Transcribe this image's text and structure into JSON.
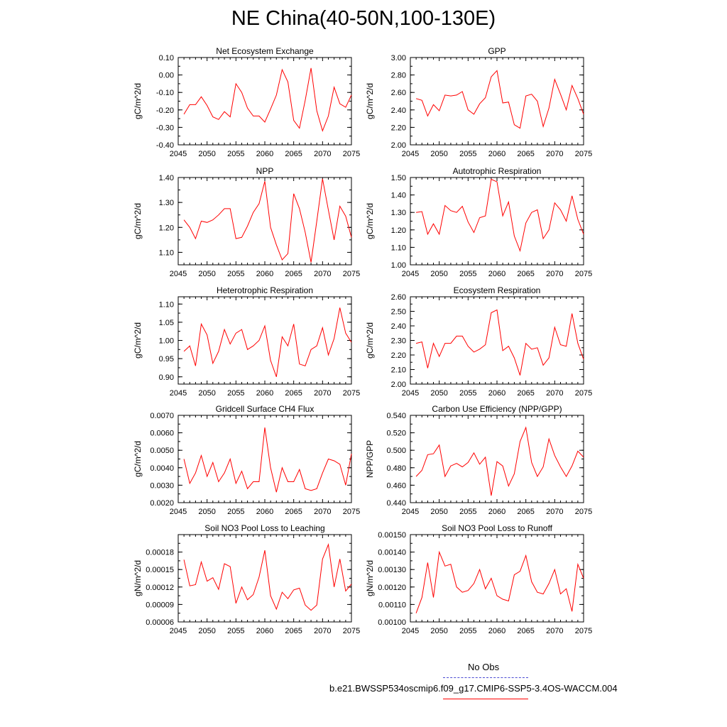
{
  "title": "NE China(40-50N,100-130E)",
  "colors": {
    "model_line": "#ff0000",
    "obs_line": "#4b4bd2",
    "axis": "#000000"
  },
  "legend": [
    {
      "label": "No Obs",
      "style": "dashed",
      "color": "#4b4bd2"
    },
    {
      "label": "b.e21.BWSSP534oscmip6.f09_g17.CMIP6-SSP5-3.4OS-WACCM.004",
      "style": "solid",
      "color": "#ff0000"
    }
  ],
  "chart_data": [
    {
      "type": "line",
      "title": "Net Ecosystem Exchange",
      "ylabel": "gC/m^2/d",
      "xlim": [
        2045,
        2075
      ],
      "xticks": [
        2045,
        2050,
        2055,
        2060,
        2065,
        2070,
        2075
      ],
      "ylim": [
        -0.4,
        0.1
      ],
      "yticks": [
        "-0.40",
        "-0.30",
        "-0.20",
        "-0.10",
        "0.00",
        "0.10"
      ],
      "x_start": 2046,
      "values": [
        -0.225,
        -0.17,
        -0.17,
        -0.125,
        -0.175,
        -0.24,
        -0.255,
        -0.21,
        -0.24,
        -0.05,
        -0.1,
        -0.19,
        -0.235,
        -0.235,
        -0.27,
        -0.195,
        -0.115,
        0.03,
        -0.04,
        -0.26,
        -0.305,
        -0.145,
        0.04,
        -0.205,
        -0.32,
        -0.235,
        -0.07,
        -0.165,
        -0.185,
        -0.115
      ]
    },
    {
      "type": "line",
      "title": "GPP",
      "ylabel": "gC/m^2/d",
      "xlim": [
        2045,
        2075
      ],
      "xticks": [
        2045,
        2050,
        2055,
        2060,
        2065,
        2070,
        2075
      ],
      "ylim": [
        2.0,
        3.0
      ],
      "yticks": [
        "2.00",
        "2.20",
        "2.40",
        "2.60",
        "2.80",
        "3.00"
      ],
      "x_start": 2046,
      "values": [
        2.53,
        2.51,
        2.33,
        2.46,
        2.39,
        2.57,
        2.56,
        2.57,
        2.61,
        2.4,
        2.35,
        2.47,
        2.54,
        2.78,
        2.85,
        2.48,
        2.49,
        2.23,
        2.19,
        2.56,
        2.58,
        2.5,
        2.21,
        2.42,
        2.75,
        2.58,
        2.4,
        2.68,
        2.53,
        2.35
      ]
    },
    {
      "type": "line",
      "title": "NPP",
      "ylabel": "gC/m^2/d",
      "xlim": [
        2045,
        2075
      ],
      "xticks": [
        2045,
        2050,
        2055,
        2060,
        2065,
        2070,
        2075
      ],
      "ylim": [
        1.05,
        1.4
      ],
      "yticks": [
        "1.10",
        "1.20",
        "1.30",
        "1.40"
      ],
      "x_start": 2046,
      "values": [
        1.23,
        1.2,
        1.155,
        1.225,
        1.22,
        1.23,
        1.25,
        1.275,
        1.275,
        1.155,
        1.16,
        1.205,
        1.26,
        1.295,
        1.385,
        1.2,
        1.13,
        1.07,
        1.095,
        1.335,
        1.275,
        1.18,
        1.06,
        1.225,
        1.395,
        1.27,
        1.15,
        1.285,
        1.245,
        1.16
      ]
    },
    {
      "type": "line",
      "title": "Autotrophic Respiration",
      "ylabel": "gC/m^2/d",
      "xlim": [
        2045,
        2075
      ],
      "xticks": [
        2045,
        2050,
        2055,
        2060,
        2065,
        2070,
        2075
      ],
      "ylim": [
        1.0,
        1.5
      ],
      "yticks": [
        "1.00",
        "1.10",
        "1.20",
        "1.30",
        "1.40",
        "1.50"
      ],
      "x_start": 2046,
      "values": [
        1.3,
        1.305,
        1.175,
        1.235,
        1.175,
        1.34,
        1.31,
        1.3,
        1.335,
        1.245,
        1.185,
        1.27,
        1.28,
        1.49,
        1.475,
        1.28,
        1.36,
        1.165,
        1.08,
        1.24,
        1.3,
        1.315,
        1.15,
        1.2,
        1.355,
        1.315,
        1.25,
        1.395,
        1.26,
        1.175
      ]
    },
    {
      "type": "line",
      "title": "Heterotrophic Respiration",
      "ylabel": "gC/m^2/d",
      "xlim": [
        2045,
        2075
      ],
      "xticks": [
        2045,
        2050,
        2055,
        2060,
        2065,
        2070,
        2075
      ],
      "ylim": [
        0.88,
        1.12
      ],
      "yticks": [
        "0.90",
        "0.95",
        "1.00",
        "1.05",
        "1.10"
      ],
      "x_start": 2046,
      "values": [
        0.97,
        0.985,
        0.93,
        1.045,
        1.015,
        0.937,
        0.97,
        1.03,
        0.99,
        1.02,
        1.03,
        0.975,
        0.985,
        1.0,
        1.04,
        0.945,
        0.9,
        1.01,
        0.985,
        1.045,
        0.935,
        0.93,
        0.975,
        0.985,
        1.035,
        0.96,
        1.005,
        1.09,
        1.02,
        0.995
      ]
    },
    {
      "type": "line",
      "title": "Ecosystem Respiration",
      "ylabel": "gC/m^2/d",
      "xlim": [
        2045,
        2075
      ],
      "xticks": [
        2045,
        2050,
        2055,
        2060,
        2065,
        2070,
        2075
      ],
      "ylim": [
        2.0,
        2.6
      ],
      "yticks": [
        "2.00",
        "2.10",
        "2.20",
        "2.30",
        "2.40",
        "2.50",
        "2.60"
      ],
      "x_start": 2046,
      "values": [
        2.28,
        2.29,
        2.11,
        2.28,
        2.19,
        2.28,
        2.28,
        2.33,
        2.33,
        2.26,
        2.22,
        2.24,
        2.27,
        2.49,
        2.51,
        2.23,
        2.26,
        2.18,
        2.06,
        2.28,
        2.24,
        2.25,
        2.13,
        2.18,
        2.39,
        2.27,
        2.26,
        2.485,
        2.28,
        2.17
      ]
    },
    {
      "type": "line",
      "title": "Gridcell Surface CH4 Flux",
      "ylabel": "gC/m^2/d",
      "xlim": [
        2045,
        2075
      ],
      "xticks": [
        2045,
        2050,
        2055,
        2060,
        2065,
        2070,
        2075
      ],
      "ylim": [
        0.002,
        0.007
      ],
      "yticks": [
        "0.0020",
        "0.0030",
        "0.0040",
        "0.0050",
        "0.0060",
        "0.0070"
      ],
      "x_start": 2046,
      "values": [
        0.0045,
        0.0031,
        0.0037,
        0.0047,
        0.0035,
        0.0043,
        0.0032,
        0.0037,
        0.0045,
        0.0031,
        0.0038,
        0.0028,
        0.0032,
        0.0032,
        0.0063,
        0.004,
        0.0026,
        0.004,
        0.0032,
        0.0032,
        0.0039,
        0.0028,
        0.0027,
        0.0028,
        0.0037,
        0.0045,
        0.0044,
        0.0042,
        0.003,
        0.0048
      ]
    },
    {
      "type": "line",
      "title": "Carbon Use Efficiency (NPP/GPP)",
      "ylabel": "NPP/GPP",
      "xlim": [
        2045,
        2075
      ],
      "xticks": [
        2045,
        2050,
        2055,
        2060,
        2065,
        2070,
        2075
      ],
      "ylim": [
        0.44,
        0.54
      ],
      "yticks": [
        "0.440",
        "0.460",
        "0.480",
        "0.500",
        "0.520",
        "0.540"
      ],
      "x_start": 2046,
      "values": [
        0.47,
        0.477,
        0.495,
        0.496,
        0.506,
        0.47,
        0.482,
        0.485,
        0.481,
        0.486,
        0.497,
        0.484,
        0.492,
        0.448,
        0.487,
        0.482,
        0.459,
        0.473,
        0.51,
        0.526,
        0.486,
        0.47,
        0.481,
        0.513,
        0.494,
        0.481,
        0.47,
        0.482,
        0.499,
        0.492
      ]
    },
    {
      "type": "line",
      "title": "Soil NO3 Pool Loss to Leaching",
      "ylabel": "gN/m^2/d",
      "xlim": [
        2045,
        2075
      ],
      "xticks": [
        2045,
        2050,
        2055,
        2060,
        2065,
        2070,
        2075
      ],
      "ylim": [
        6e-05,
        0.00021
      ],
      "yticks": [
        "0.00006",
        "0.00009",
        "0.00012",
        "0.00015",
        "0.00018"
      ],
      "x_start": 2046,
      "values": [
        0.000167,
        0.000122,
        0.000124,
        0.000163,
        0.00013,
        0.000136,
        0.000116,
        0.00016,
        0.000155,
        9.2e-05,
        0.00012,
        9.8e-05,
        0.000107,
        0.000137,
        0.000183,
        0.000105,
        8.2e-05,
        0.000111,
        0.0001,
        0.000115,
        0.000118,
        8.9e-05,
        8e-05,
        8.9e-05,
        0.000168,
        0.000193,
        0.00012,
        0.000168,
        0.000113,
        0.000125
      ]
    },
    {
      "type": "line",
      "title": "Soil NO3 Pool Loss to Runoff",
      "ylabel": "gN/m^2/d",
      "xlim": [
        2045,
        2075
      ],
      "xticks": [
        2045,
        2050,
        2055,
        2060,
        2065,
        2070,
        2075
      ],
      "ylim": [
        0.001,
        0.0015
      ],
      "yticks": [
        "0.00100",
        "0.00110",
        "0.00120",
        "0.00130",
        "0.00140",
        "0.00150"
      ],
      "x_start": 2046,
      "values": [
        0.00105,
        0.00114,
        0.00134,
        0.00114,
        0.0014,
        0.00132,
        0.00133,
        0.0012,
        0.00117,
        0.00118,
        0.00122,
        0.0013,
        0.00119,
        0.00125,
        0.00115,
        0.00113,
        0.00112,
        0.00127,
        0.00129,
        0.00138,
        0.00123,
        0.00117,
        0.00116,
        0.00122,
        0.0013,
        0.00116,
        0.00119,
        0.00106,
        0.00133,
        0.00125
      ]
    }
  ]
}
